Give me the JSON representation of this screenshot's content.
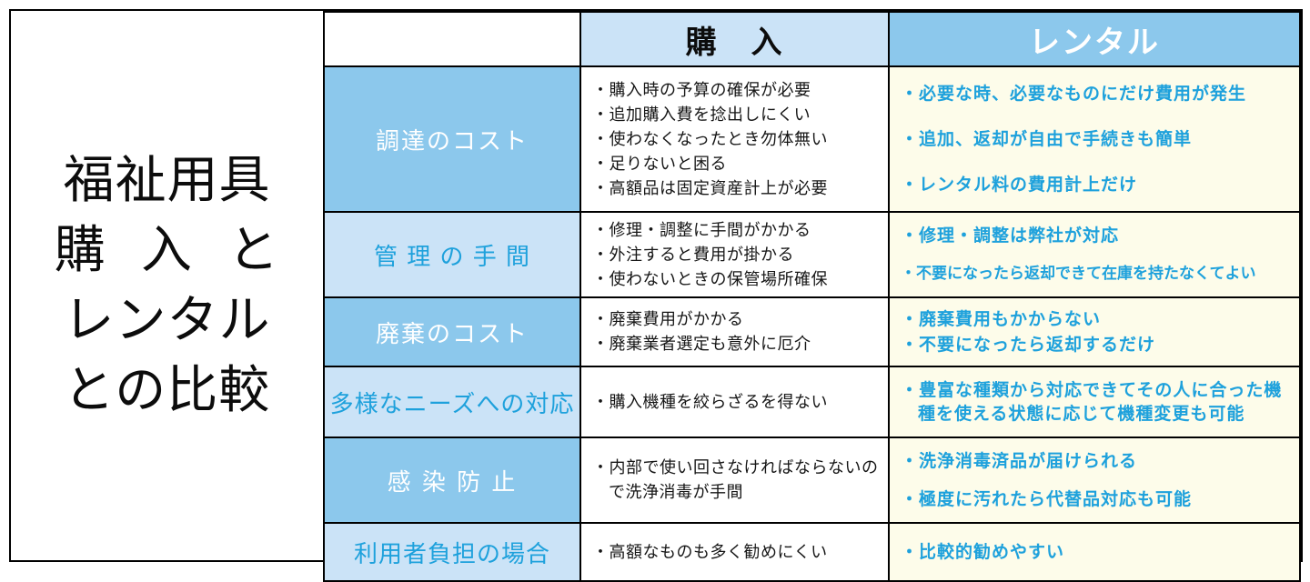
{
  "colors": {
    "dark_blue": "#8CC8EC",
    "light_blue": "#CBE3F7",
    "cream": "#FDFCEA",
    "blue_text": "#1EA1DC",
    "border": "#000000"
  },
  "title": {
    "lines": [
      "福祉用具",
      "購 入 と",
      "レンタル",
      "との比較"
    ]
  },
  "header": {
    "blank": "",
    "purchase": "購　入",
    "rental": "レンタル"
  },
  "rows": [
    {
      "label": "調達のコスト",
      "tone": "dark",
      "purchase": [
        "・購入時の予算の確保が必要",
        "・追加購入費を捻出しにくい",
        "・使わなくなったとき勿体無い",
        "・足りないと困る",
        "・高額品は固定資産計上が必要"
      ],
      "rental": [
        "・必要な時、必要なものにだけ費用が発生",
        "・追加、返却が自由で手続きも簡単",
        "・レンタル料の費用計上だけ"
      ]
    },
    {
      "label": "管 理 の 手 間",
      "tone": "light",
      "purchase": [
        "・修理・調整に手間がかかる",
        "・外注すると費用が掛かる",
        "・使わないときの保管場所確保"
      ],
      "rental": [
        "・修理・調整は弊社が対応",
        "・不要になったら返却できて在庫を持たなくてよい"
      ]
    },
    {
      "label": "廃棄のコスト",
      "tone": "dark",
      "purchase": [
        "・廃棄費用がかかる",
        "・廃棄業者選定も意外に厄介"
      ],
      "rental": [
        "・廃棄費用もかからない",
        "・不要になったら返却するだけ"
      ]
    },
    {
      "label": "多様なニーズへの対応",
      "tone": "light",
      "purchase": [
        "・購入機種を絞らざるを得ない"
      ],
      "rental": [
        "・豊富な種類から対応できてその人に合った機種を使える状態に応じて機種変更も可能"
      ]
    },
    {
      "label": "感 染 防 止",
      "tone": "dark",
      "purchase": [
        "・内部で使い回さなければならないので洗浄消毒が手間"
      ],
      "rental": [
        "・洗浄消毒済品が届けられる",
        "・極度に汚れたら代替品対応も可能"
      ]
    },
    {
      "label": "利用者負担の場合",
      "tone": "light",
      "purchase": [
        "・高額なものも多く勧めにくい"
      ],
      "rental": [
        "・比較的勧めやすい"
      ]
    }
  ]
}
